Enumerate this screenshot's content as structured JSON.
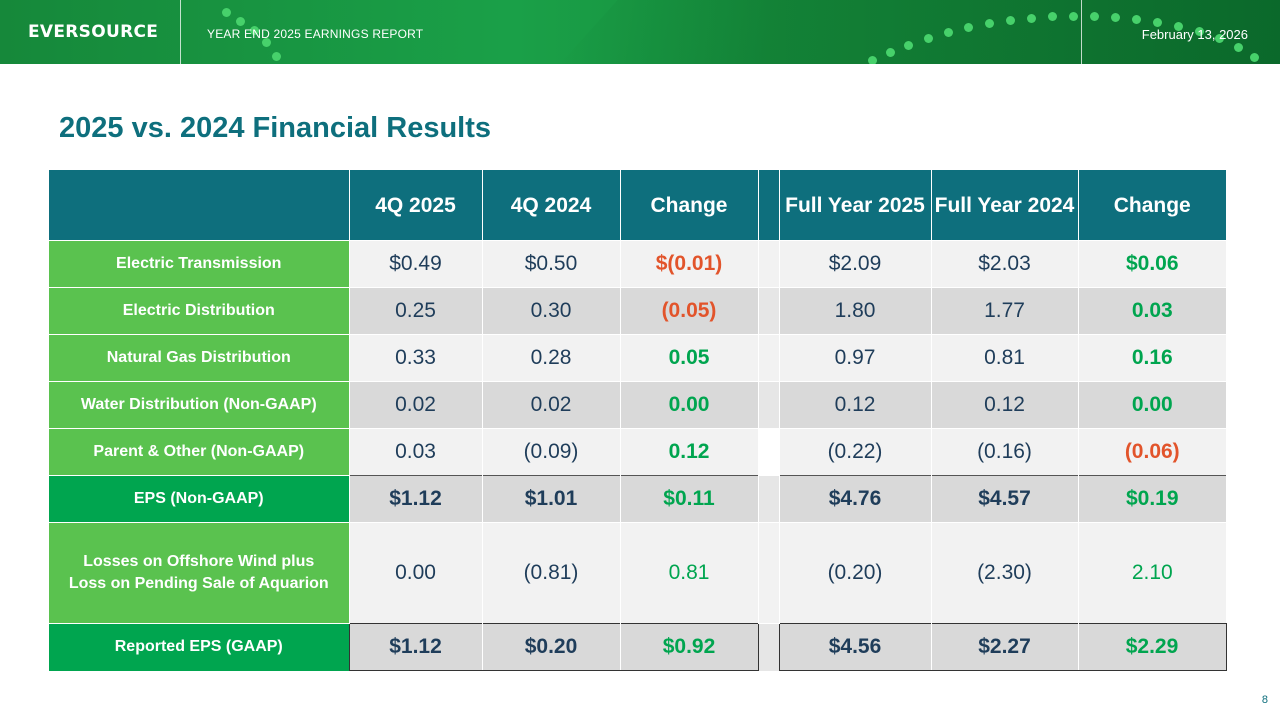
{
  "header": {
    "logo_text": "EVERSOURCE",
    "report_title": "YEAR END 2025 EARNINGS REPORT",
    "date": "February 13, 2026"
  },
  "page_title": "2025 vs. 2024 Financial Results",
  "page_number": "8",
  "table": {
    "columns": [
      "",
      "4Q 2025",
      "4Q 2024",
      "Change",
      "",
      "Full Year 2025",
      "Full Year 2024",
      "Change"
    ],
    "column_labels": {
      "q4_2025": "4Q 2025",
      "q4_2024": "4Q 2024",
      "q_change": "Change",
      "fy_2025": "Full Year 2025",
      "fy_2024": "Full Year 2024",
      "fy_change": "Change"
    },
    "rows": [
      {
        "label": "Electric Transmission",
        "q4_2025": "$0.49",
        "q4_2024": "$0.50",
        "q_change": "$(0.01)",
        "fy_2025": "$2.09",
        "fy_2024": "$2.03",
        "fy_change": "$0.06"
      },
      {
        "label": "Electric Distribution",
        "q4_2025": "0.25",
        "q4_2024": "0.30",
        "q_change": "(0.05)",
        "fy_2025": "1.80",
        "fy_2024": "1.77",
        "fy_change": "0.03"
      },
      {
        "label": "Natural Gas Distribution",
        "q4_2025": "0.33",
        "q4_2024": "0.28",
        "q_change": "0.05",
        "fy_2025": "0.97",
        "fy_2024": "0.81",
        "fy_change": "0.16"
      },
      {
        "label": "Water Distribution (Non-GAAP)",
        "q4_2025": "0.02",
        "q4_2024": "0.02",
        "q_change": "0.00",
        "fy_2025": "0.12",
        "fy_2024": "0.12",
        "fy_change": "0.00"
      },
      {
        "label": "Parent & Other (Non-GAAP)",
        "q4_2025": "0.03",
        "q4_2024": "(0.09)",
        "q_change": "0.12",
        "fy_2025": "(0.22)",
        "fy_2024": "(0.16)",
        "fy_change": "(0.06)"
      },
      {
        "label": "EPS (Non-GAAP)",
        "q4_2025": "$1.12",
        "q4_2024": "$1.01",
        "q_change": "$0.11",
        "fy_2025": "$4.76",
        "fy_2024": "$4.57",
        "fy_change": "$0.19"
      },
      {
        "label": "Losses on Offshore Wind plus Loss on Pending Sale of Aquarion",
        "q4_2025": "0.00",
        "q4_2024": "(0.81)",
        "q_change": "0.81",
        "fy_2025": "(0.20)",
        "fy_2024": "(2.30)",
        "fy_change": "2.10"
      },
      {
        "label": "Reported EPS (GAAP)",
        "q4_2025": "$1.12",
        "q4_2024": "$0.20",
        "q_change": "$0.92",
        "fy_2025": "$4.56",
        "fy_2024": "$2.27",
        "fy_change": "$2.29"
      }
    ]
  },
  "colors": {
    "header_green": "#1aa048",
    "title_teal": "#0e6f7d",
    "label_green": "#5ac24f",
    "label_dark_green": "#00a54f",
    "negative_red": "#e2542b",
    "positive_green": "#00a54f"
  }
}
